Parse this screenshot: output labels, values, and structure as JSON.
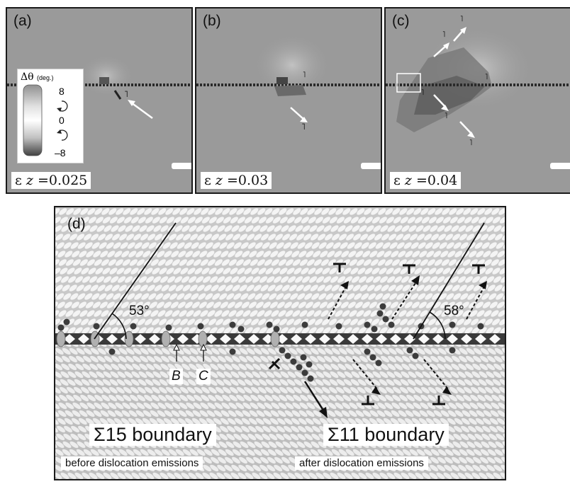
{
  "panels": [
    {
      "label": "(a)",
      "strain_symbol": "ε",
      "strain_sub": "z",
      "strain_value": "=0.025"
    },
    {
      "label": "(b)",
      "strain_symbol": "ε",
      "strain_sub": "z",
      "strain_value": "=0.03"
    },
    {
      "label": "(c)",
      "strain_symbol": "ε",
      "strain_sub": "z",
      "strain_value": "=0.04"
    }
  ],
  "legend": {
    "title": "Δθ",
    "unit": "(deg.)",
    "max_label": "8",
    "zero_label": "0",
    "min_label": "–8"
  },
  "panel_d": {
    "label": "(d)",
    "angle_left": "53°",
    "angle_right": "58°",
    "site_b": "B",
    "site_c": "C",
    "left_boundary": "Σ15 boundary",
    "right_boundary": "Σ11 boundary",
    "left_caption": "before dislocation emissions",
    "right_caption": "after dislocation emissions"
  },
  "colors": {
    "panel_bg": "#9a9a9a",
    "dark_region": "#5c5c5c",
    "atom_light": "#e6e6e6",
    "atom_dark": "#444444"
  }
}
